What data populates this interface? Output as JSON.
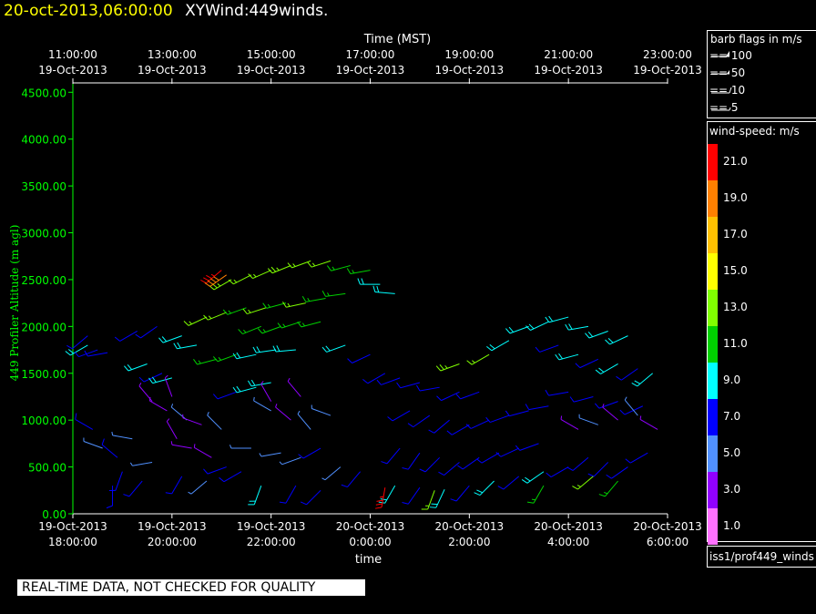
{
  "header": {
    "timestamp": "20-oct-2013,06:00:00",
    "product": "XYWind:449winds."
  },
  "chart_data": {
    "type": "wind-barb",
    "top_axis_title": "Time (MST)",
    "top_ticks": [
      {
        "time": "11:00:00",
        "date": "19-Oct-2013"
      },
      {
        "time": "13:00:00",
        "date": "19-Oct-2013"
      },
      {
        "time": "15:00:00",
        "date": "19-Oct-2013"
      },
      {
        "time": "17:00:00",
        "date": "19-Oct-2013"
      },
      {
        "time": "19:00:00",
        "date": "19-Oct-2013"
      },
      {
        "time": "21:00:00",
        "date": "19-Oct-2013"
      },
      {
        "time": "23:00:00",
        "date": "19-Oct-2013"
      }
    ],
    "bottom_ticks": [
      {
        "date": "19-Oct-2013",
        "time": "18:00:00"
      },
      {
        "date": "19-Oct-2013",
        "time": "20:00:00"
      },
      {
        "date": "19-Oct-2013",
        "time": "22:00:00"
      },
      {
        "date": "20-Oct-2013",
        "time": "0:00:00"
      },
      {
        "date": "20-Oct-2013",
        "time": "2:00:00"
      },
      {
        "date": "20-Oct-2013",
        "time": "4:00:00"
      },
      {
        "date": "20-Oct-2013",
        "time": "6:00:00"
      }
    ],
    "xlabel": "time",
    "ylabel": "449 Profiler Altitude (m agl)",
    "yticks": [
      "0.00",
      "500.00",
      "1000.00",
      "1500.00",
      "2000.00",
      "2500.00",
      "3000.00",
      "3500.00",
      "4000.00",
      "4500.00"
    ],
    "ylim": [
      0,
      4600
    ],
    "x_range_hours": [
      0,
      12
    ],
    "grid": false,
    "axis_color": "#00ff00",
    "sample_barbs": [
      [
        0.3,
        1800,
        8,
        240
      ],
      [
        0.5,
        1750,
        7,
        250
      ],
      [
        0.7,
        1720,
        7,
        260
      ],
      [
        0.3,
        1900,
        6,
        230
      ],
      [
        0.4,
        900,
        6,
        300
      ],
      [
        0.6,
        700,
        5,
        290
      ],
      [
        0.9,
        600,
        6,
        310
      ],
      [
        1.2,
        800,
        4,
        280
      ],
      [
        1.0,
        450,
        7,
        200
      ],
      [
        1.4,
        350,
        6,
        220
      ],
      [
        1.6,
        550,
        4,
        260
      ],
      [
        0.8,
        300,
        7,
        180
      ],
      [
        1.5,
        1600,
        8,
        250
      ],
      [
        1.8,
        1500,
        7,
        245
      ],
      [
        2.0,
        1450,
        9,
        255
      ],
      [
        1.3,
        1950,
        7,
        240
      ],
      [
        1.7,
        2000,
        6,
        235
      ],
      [
        2.2,
        1900,
        8,
        250
      ],
      [
        2.5,
        1800,
        9,
        260
      ],
      [
        1.6,
        1200,
        3,
        320
      ],
      [
        1.9,
        1100,
        3,
        300
      ],
      [
        2.3,
        1000,
        4,
        310
      ],
      [
        2.6,
        950,
        2,
        290
      ],
      [
        2.1,
        800,
        3,
        330
      ],
      [
        2.4,
        700,
        2,
        280
      ],
      [
        2.8,
        600,
        3,
        300
      ],
      [
        3.0,
        900,
        4,
        315
      ],
      [
        2.2,
        400,
        6,
        210
      ],
      [
        2.7,
        350,
        5,
        230
      ],
      [
        3.1,
        500,
        7,
        250
      ],
      [
        3.4,
        450,
        6,
        240
      ],
      [
        3.6,
        700,
        5,
        270
      ],
      [
        3.3,
        1300,
        7,
        250
      ],
      [
        3.7,
        1350,
        8,
        255
      ],
      [
        4.0,
        1400,
        8,
        260
      ],
      [
        2.9,
        1650,
        10,
        255
      ],
      [
        3.3,
        1700,
        10,
        250
      ],
      [
        3.7,
        1700,
        9,
        258
      ],
      [
        4.1,
        1750,
        9,
        262
      ],
      [
        4.5,
        1750,
        9,
        265
      ],
      [
        2.7,
        2100,
        12,
        245
      ],
      [
        3.1,
        2150,
        12,
        248
      ],
      [
        3.5,
        2200,
        11,
        250
      ],
      [
        3.9,
        2200,
        12,
        252
      ],
      [
        4.3,
        2250,
        11,
        255
      ],
      [
        4.7,
        2250,
        12,
        258
      ],
      [
        5.1,
        2300,
        11,
        260
      ],
      [
        5.5,
        2350,
        10,
        262
      ],
      [
        3.2,
        2500,
        13,
        240
      ],
      [
        3.6,
        2550,
        12,
        243
      ],
      [
        4.0,
        2600,
        12,
        246
      ],
      [
        4.4,
        2650,
        13,
        248
      ],
      [
        4.8,
        2700,
        12,
        250
      ],
      [
        5.2,
        2700,
        12,
        252
      ],
      [
        5.6,
        2650,
        11,
        255
      ],
      [
        6.0,
        2600,
        10,
        260
      ],
      [
        3.0,
        2600,
        21,
        230
      ],
      [
        3.1,
        2550,
        18,
        235
      ],
      [
        6.2,
        2450,
        9,
        270
      ],
      [
        6.5,
        2350,
        8,
        275
      ],
      [
        3.8,
        2000,
        10,
        248
      ],
      [
        4.2,
        2000,
        10,
        250
      ],
      [
        4.6,
        2050,
        11,
        252
      ],
      [
        5.0,
        2050,
        10,
        255
      ],
      [
        4.0,
        1100,
        4,
        300
      ],
      [
        4.4,
        1000,
        3,
        310
      ],
      [
        4.8,
        900,
        4,
        320
      ],
      [
        5.2,
        1050,
        5,
        290
      ],
      [
        4.2,
        650,
        5,
        260
      ],
      [
        4.6,
        600,
        4,
        250
      ],
      [
        5.0,
        700,
        6,
        240
      ],
      [
        5.4,
        500,
        5,
        230
      ],
      [
        5.8,
        450,
        6,
        220
      ],
      [
        3.8,
        300,
        8,
        200
      ],
      [
        4.5,
        300,
        7,
        210
      ],
      [
        5.0,
        250,
        6,
        225
      ],
      [
        5.5,
        1800,
        8,
        250
      ],
      [
        6.0,
        1700,
        7,
        245
      ],
      [
        6.3,
        1500,
        6,
        240
      ],
      [
        6.6,
        1450,
        7,
        250
      ],
      [
        7.0,
        1400,
        7,
        255
      ],
      [
        7.4,
        1350,
        6,
        260
      ],
      [
        7.8,
        1300,
        7,
        245
      ],
      [
        8.2,
        1300,
        6,
        250
      ],
      [
        6.8,
        1100,
        7,
        240
      ],
      [
        7.2,
        1050,
        6,
        235
      ],
      [
        7.6,
        1000,
        7,
        230
      ],
      [
        8.0,
        950,
        6,
        240
      ],
      [
        8.4,
        1000,
        7,
        245
      ],
      [
        8.8,
        1050,
        6,
        250
      ],
      [
        9.2,
        1100,
        7,
        255
      ],
      [
        9.6,
        1150,
        6,
        260
      ],
      [
        6.6,
        700,
        7,
        220
      ],
      [
        7.0,
        650,
        6,
        215
      ],
      [
        7.4,
        600,
        7,
        225
      ],
      [
        7.8,
        550,
        6,
        230
      ],
      [
        8.2,
        600,
        7,
        235
      ],
      [
        8.6,
        650,
        6,
        240
      ],
      [
        9.0,
        700,
        7,
        245
      ],
      [
        9.4,
        750,
        6,
        250
      ],
      [
        6.5,
        300,
        8,
        210
      ],
      [
        7.0,
        280,
        7,
        215
      ],
      [
        7.5,
        260,
        8,
        205
      ],
      [
        8.0,
        300,
        7,
        220
      ],
      [
        8.5,
        350,
        8,
        225
      ],
      [
        9.0,
        400,
        7,
        230
      ],
      [
        9.5,
        450,
        8,
        235
      ],
      [
        10.0,
        500,
        7,
        240
      ],
      [
        9.8,
        1800,
        7,
        250
      ],
      [
        10.2,
        1700,
        8,
        255
      ],
      [
        10.6,
        1650,
        7,
        245
      ],
      [
        11.0,
        1600,
        8,
        240
      ],
      [
        11.4,
        1550,
        7,
        235
      ],
      [
        11.7,
        1500,
        8,
        230
      ],
      [
        10.0,
        1300,
        6,
        260
      ],
      [
        10.5,
        1250,
        7,
        255
      ],
      [
        11.0,
        1200,
        6,
        250
      ],
      [
        11.5,
        1150,
        7,
        245
      ],
      [
        10.2,
        900,
        3,
        300
      ],
      [
        10.6,
        950,
        4,
        290
      ],
      [
        11.0,
        1000,
        3,
        310
      ],
      [
        11.4,
        1050,
        4,
        320
      ],
      [
        11.8,
        900,
        3,
        300
      ],
      [
        10.4,
        600,
        6,
        230
      ],
      [
        10.8,
        550,
        7,
        225
      ],
      [
        11.2,
        500,
        6,
        235
      ],
      [
        11.6,
        650,
        7,
        240
      ],
      [
        9.2,
        2000,
        9,
        250
      ],
      [
        9.6,
        2050,
        8,
        245
      ],
      [
        10.0,
        2100,
        9,
        255
      ],
      [
        10.4,
        2000,
        8,
        260
      ],
      [
        10.8,
        1950,
        9,
        250
      ],
      [
        11.2,
        1900,
        8,
        245
      ],
      [
        8.8,
        1850,
        9,
        240
      ],
      [
        6.3,
        280,
        20,
        190
      ],
      [
        7.3,
        250,
        12,
        200
      ],
      [
        4.0,
        1200,
        2,
        330
      ],
      [
        4.6,
        1250,
        2,
        320
      ],
      [
        2.0,
        1250,
        2,
        340
      ],
      [
        9.5,
        300,
        10,
        210
      ],
      [
        10.5,
        400,
        12,
        230
      ],
      [
        11.0,
        350,
        11,
        220
      ],
      [
        7.8,
        1600,
        13,
        250
      ],
      [
        8.4,
        1700,
        12,
        240
      ]
    ]
  },
  "flag_legend": {
    "title": "barb flags in m/s",
    "items": [
      "== 100",
      "== 50",
      "== 10",
      "== 5"
    ]
  },
  "speed_legend": {
    "title": "wind-speed: m/s",
    "items": [
      {
        "label": "21.0",
        "color": "#ff0000"
      },
      {
        "label": "19.0",
        "color": "#ff8000"
      },
      {
        "label": "17.0",
        "color": "#ffc000"
      },
      {
        "label": "15.0",
        "color": "#ffff00"
      },
      {
        "label": "13.0",
        "color": "#80ff00"
      },
      {
        "label": "11.0",
        "color": "#00d000"
      },
      {
        "label": "9.0",
        "color": "#00ffff"
      },
      {
        "label": "7.0",
        "color": "#0000ff"
      },
      {
        "label": "5.0",
        "color": "#5090ff"
      },
      {
        "label": "3.0",
        "color": "#9000ff"
      },
      {
        "label": "1.0",
        "color": "#ff70ff"
      }
    ]
  },
  "source_path": "iss1/prof449_winds",
  "quality_notice": "REAL-TIME DATA, NOT CHECKED FOR QUALITY"
}
